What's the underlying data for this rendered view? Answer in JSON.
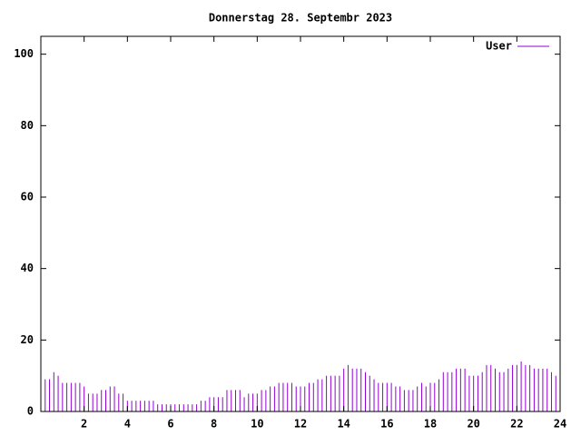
{
  "chart_data": {
    "type": "impulse",
    "title": "Donnerstag 28. Septembr 2023",
    "x": [
      0,
      0.2,
      0.4,
      0.6,
      0.8,
      1,
      1.2,
      1.4,
      1.6,
      1.8,
      2,
      2.2,
      2.4,
      2.6,
      2.8,
      3,
      3.2,
      3.4,
      3.6,
      3.8,
      4,
      4.2,
      4.4,
      4.6,
      4.8,
      5,
      5.2,
      5.4,
      5.6,
      5.8,
      6,
      6.2,
      6.4,
      6.6,
      6.8,
      7,
      7.2,
      7.4,
      7.6,
      7.8,
      8,
      8.2,
      8.4,
      8.6,
      8.8,
      9,
      9.2,
      9.4,
      9.6,
      9.8,
      10,
      10.2,
      10.4,
      10.6,
      10.8,
      11,
      11.2,
      11.4,
      11.6,
      11.8,
      12,
      12.2,
      12.4,
      12.6,
      12.8,
      13,
      13.2,
      13.4,
      13.6,
      13.8,
      14,
      14.2,
      14.4,
      14.6,
      14.8,
      15,
      15.2,
      15.4,
      15.6,
      15.8,
      16,
      16.2,
      16.4,
      16.6,
      16.8,
      17,
      17.2,
      17.4,
      17.6,
      17.8,
      18,
      18.2,
      18.4,
      18.6,
      18.8,
      19,
      19.2,
      19.4,
      19.6,
      19.8,
      20,
      20.2,
      20.4,
      20.6,
      20.8,
      21,
      21.2,
      21.4,
      21.6,
      21.8,
      22,
      22.2,
      22.4,
      22.6,
      22.8,
      23,
      23.2,
      23.4,
      23.6,
      23.8
    ],
    "series": [
      {
        "name": "User",
        "color": "#9400d3",
        "values": [
          9,
          9,
          9,
          11,
          10,
          8,
          8,
          8,
          8,
          8,
          7,
          5,
          5,
          5,
          6,
          6,
          7,
          7,
          5,
          5,
          3,
          3,
          3,
          3,
          3,
          3,
          3,
          2,
          2,
          2,
          2,
          2,
          2,
          2,
          2,
          2,
          2,
          3,
          3,
          4,
          4,
          4,
          4,
          6,
          6,
          6,
          6,
          4,
          5,
          5,
          5,
          6,
          6,
          7,
          7,
          8,
          8,
          8,
          8,
          7,
          7,
          7,
          8,
          8,
          9,
          9,
          10,
          10,
          10,
          10,
          12,
          13,
          12,
          12,
          12,
          11,
          10,
          9,
          8,
          8,
          8,
          8,
          7,
          7,
          6,
          6,
          6,
          7,
          8,
          7,
          8,
          8,
          9,
          11,
          11,
          11,
          12,
          12,
          12,
          10,
          10,
          10,
          11,
          13,
          13,
          12,
          11,
          11,
          12,
          13,
          13,
          14,
          13,
          13,
          12,
          12,
          12,
          12,
          11,
          10
        ]
      }
    ],
    "xlim": [
      0,
      24
    ],
    "xticks": [
      2,
      4,
      6,
      8,
      10,
      12,
      14,
      16,
      18,
      20,
      22,
      24
    ],
    "ylim": [
      0,
      105
    ],
    "yticks": [
      0,
      20,
      40,
      60,
      80,
      100
    ],
    "legend": "top-right"
  }
}
